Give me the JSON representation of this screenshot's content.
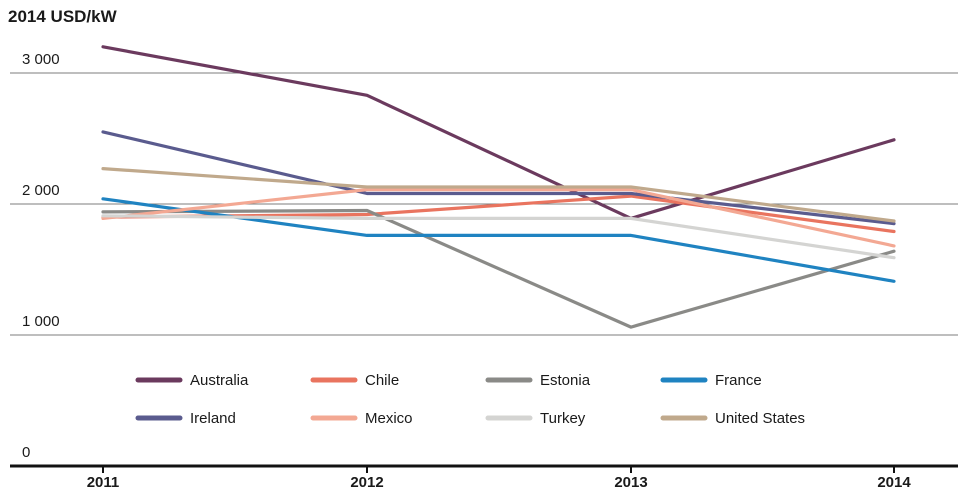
{
  "chart_data": {
    "type": "line",
    "ylabel": "2014 USD/kW",
    "x": [
      "2011",
      "2012",
      "2013",
      "2014"
    ],
    "y_ticks": [
      {
        "value": 0,
        "label": "0"
      },
      {
        "value": 1000,
        "label": "1 000"
      },
      {
        "value": 2000,
        "label": "2 000"
      },
      {
        "value": 3000,
        "label": "3 000"
      }
    ],
    "ylim": [
      0,
      3000
    ],
    "grid": true,
    "legend_position": "bottom",
    "series": [
      {
        "name": "Australia",
        "color": "#6b3a5e",
        "values": [
          3200,
          2830,
          1890,
          2490
        ]
      },
      {
        "name": "Chile",
        "color": "#e9745f",
        "values": [
          1900,
          1920,
          2060,
          1790
        ]
      },
      {
        "name": "Estonia",
        "color": "#8a8a87",
        "values": [
          1940,
          1950,
          1060,
          1640
        ]
      },
      {
        "name": "France",
        "color": "#1f83c1",
        "values": [
          2040,
          1760,
          1760,
          1410
        ]
      },
      {
        "name": "Ireland",
        "color": "#5a5b8e",
        "values": [
          2550,
          2080,
          2080,
          1850
        ]
      },
      {
        "name": "Mexico",
        "color": "#f3a893",
        "values": [
          1890,
          2110,
          2110,
          1680
        ]
      },
      {
        "name": "Turkey",
        "color": "#d4d4d2",
        "values": [
          1910,
          1890,
          1890,
          1590
        ]
      },
      {
        "name": "United States",
        "color": "#c0a98c",
        "values": [
          2270,
          2130,
          2130,
          1870
        ]
      }
    ]
  }
}
